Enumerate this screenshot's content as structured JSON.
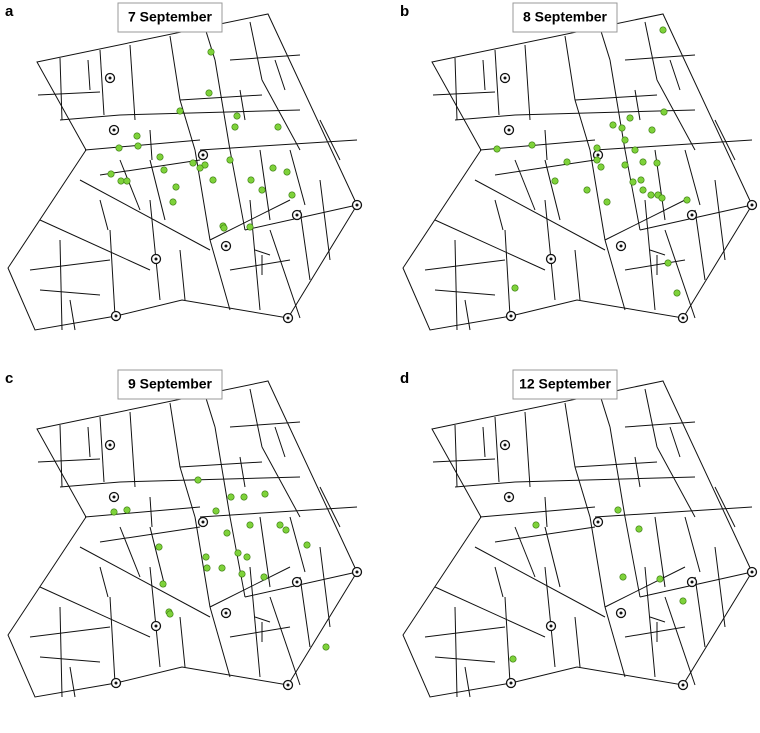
{
  "panels": [
    {
      "letter": "a",
      "title": "7 September"
    },
    {
      "letter": "b",
      "title": "8 September"
    },
    {
      "letter": "c",
      "title": "9 September"
    },
    {
      "letter": "d",
      "title": "12 September"
    }
  ]
}
